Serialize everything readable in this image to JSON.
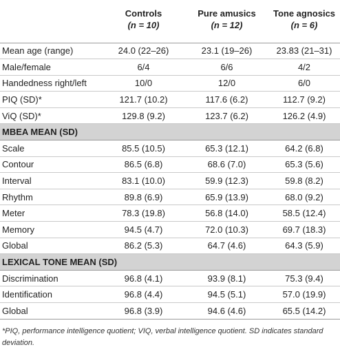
{
  "headers": {
    "blank": "",
    "col1": {
      "name": "Controls",
      "n": "(n = 10)"
    },
    "col2": {
      "name": "Pure amusics",
      "n": "(n = 12)"
    },
    "col3": {
      "name": "Tone agnosics",
      "n": "(n = 6)"
    }
  },
  "demographics": [
    {
      "label": "Mean age (range)",
      "c1": "24.0 (22–26)",
      "c2": "23.1 (19–26)",
      "c3": "23.83 (21–31)"
    },
    {
      "label": "Male/female",
      "c1": "6/4",
      "c2": "6/6",
      "c3": "4/2"
    },
    {
      "label": "Handedness right/left",
      "c1": "10/0",
      "c2": "12/0",
      "c3": "6/0"
    },
    {
      "label": "PIQ (SD)*",
      "c1": "121.7 (10.2)",
      "c2": "117.6 (6.2)",
      "c3": "112.7 (9.2)"
    },
    {
      "label": "ViQ (SD)*",
      "c1": "129.8 (9.2)",
      "c2": "123.7 (6.2)",
      "c3": "126.2 (4.9)"
    }
  ],
  "mbea": {
    "title": "MBEA MEAN (SD)",
    "rows": [
      {
        "label": "Scale",
        "c1": "85.5 (10.5)",
        "c2": "65.3 (12.1)",
        "c3": "64.2 (6.8)"
      },
      {
        "label": "Contour",
        "c1": "86.5 (6.8)",
        "c2": "68.6 (7.0)",
        "c3": "65.3 (5.6)"
      },
      {
        "label": "Interval",
        "c1": "83.1 (10.0)",
        "c2": "59.9 (12.3)",
        "c3": "59.8 (8.2)"
      },
      {
        "label": "Rhythm",
        "c1": "89.8 (6.9)",
        "c2": "65.9 (13.9)",
        "c3": "68.0 (9.2)"
      },
      {
        "label": "Meter",
        "c1": "78.3 (19.8)",
        "c2": "56.8 (14.0)",
        "c3": "58.5 (12.4)"
      },
      {
        "label": "Memory",
        "c1": "94.5 (4.7)",
        "c2": "72.0 (10.3)",
        "c3": "69.7 (18.3)"
      },
      {
        "label": "Global",
        "c1": "86.2 (5.3)",
        "c2": "64.7 (4.6)",
        "c3": "64.3 (5.9)"
      }
    ]
  },
  "lexical": {
    "title": "LEXICAL TONE MEAN (SD)",
    "rows": [
      {
        "label": "Discrimination",
        "c1": "96.8 (4.1)",
        "c2": "93.9 (8.1)",
        "c3": "75.3 (9.4)"
      },
      {
        "label": "Identification",
        "c1": "96.8 (4.4)",
        "c2": "94.5 (5.1)",
        "c3": "57.0 (19.9)"
      },
      {
        "label": "Global",
        "c1": "96.8 (3.9)",
        "c2": "94.6 (4.6)",
        "c3": "65.5 (14.2)"
      }
    ]
  },
  "footnote": "*PIQ, performance intelligence quotient; VIQ, verbal intelligence quotient. SD indicates standard deviation."
}
